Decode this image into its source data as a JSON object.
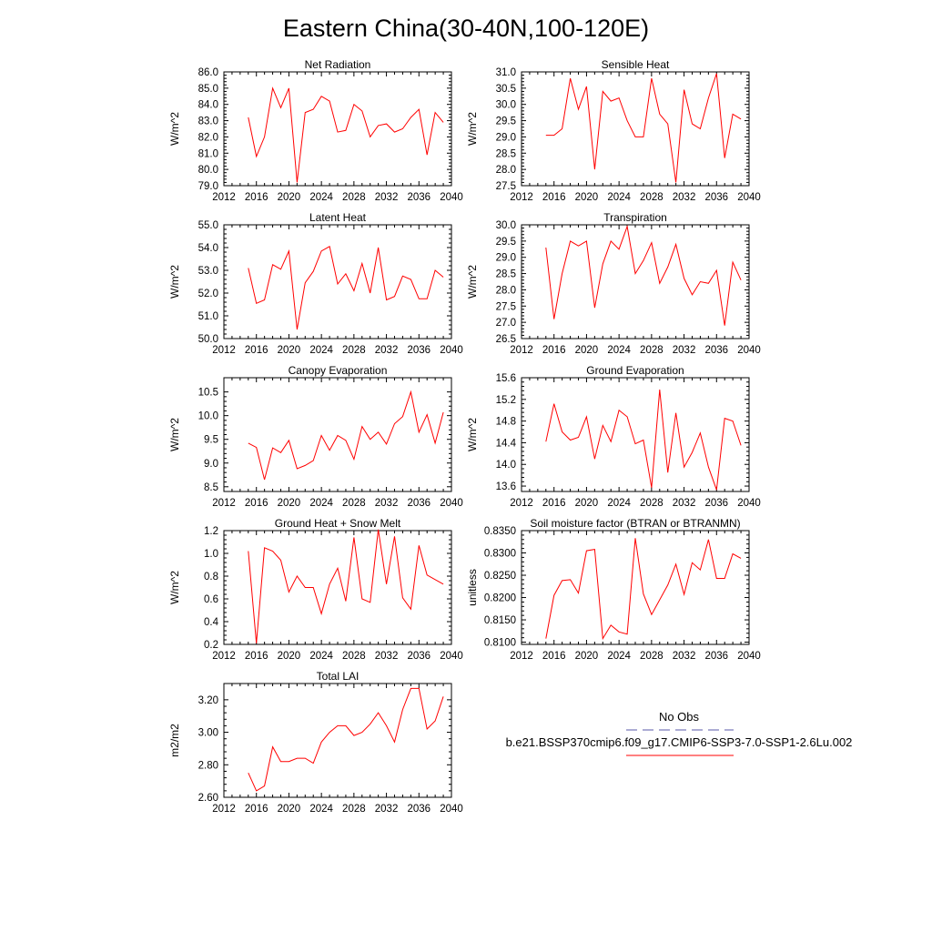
{
  "title": "Eastern China(30-40N,100-120E)",
  "legend": {
    "obs_label": "No Obs",
    "obs_color": "#5a5aa8",
    "model_label": "b.e21.BSSP370cmip6.f09_g17.CMIP6-SSP3-7.0-SSP1-2.6Lu.002",
    "model_color": "#ff0000"
  },
  "chart_data": [
    {
      "type": "line",
      "title": "Net Radiation",
      "ylabel": "W/m^2",
      "xlim": [
        2012,
        2040
      ],
      "xticks": [
        "2012",
        "2016",
        "2020",
        "2024",
        "2028",
        "2032",
        "2036",
        "2040"
      ],
      "ylim": [
        79.0,
        86.0
      ],
      "yticks": [
        "79.0",
        "80.0",
        "81.0",
        "82.0",
        "83.0",
        "84.0",
        "85.0",
        "86.0"
      ],
      "x": [
        2015,
        2016,
        2017,
        2018,
        2019,
        2020,
        2021,
        2022,
        2023,
        2024,
        2025,
        2026,
        2027,
        2028,
        2029,
        2030,
        2031,
        2032,
        2033,
        2034,
        2035,
        2036,
        2037,
        2038,
        2039
      ],
      "values": [
        83.2,
        80.8,
        82.0,
        85.0,
        83.8,
        85.0,
        79.2,
        83.5,
        83.7,
        84.5,
        84.2,
        82.3,
        82.4,
        84.0,
        83.6,
        82.0,
        82.7,
        82.8,
        82.3,
        82.5,
        83.2,
        83.7,
        80.9,
        83.5,
        82.9
      ],
      "color": "#ff0000"
    },
    {
      "type": "line",
      "title": "Sensible Heat",
      "ylabel": "W/m^2",
      "xlim": [
        2012,
        2040
      ],
      "xticks": [
        "2012",
        "2016",
        "2020",
        "2024",
        "2028",
        "2032",
        "2036",
        "2040"
      ],
      "ylim": [
        27.5,
        31.0
      ],
      "yticks": [
        "27.5",
        "28.0",
        "28.5",
        "29.0",
        "29.5",
        "30.0",
        "30.5",
        "31.0"
      ],
      "x": [
        2015,
        2016,
        2017,
        2018,
        2019,
        2020,
        2021,
        2022,
        2023,
        2024,
        2025,
        2026,
        2027,
        2028,
        2029,
        2030,
        2031,
        2032,
        2033,
        2034,
        2035,
        2036,
        2037,
        2038,
        2039
      ],
      "values": [
        29.05,
        29.05,
        29.25,
        30.8,
        29.85,
        30.55,
        28.0,
        30.4,
        30.1,
        30.2,
        29.5,
        29.0,
        29.0,
        30.8,
        29.7,
        29.4,
        27.6,
        30.45,
        29.4,
        29.25,
        30.2,
        30.95,
        28.35,
        29.7,
        29.55
      ],
      "color": "#ff0000"
    },
    {
      "type": "line",
      "title": "Latent Heat",
      "ylabel": "W/m^2",
      "xlim": [
        2012,
        2040
      ],
      "xticks": [
        "2012",
        "2016",
        "2020",
        "2024",
        "2028",
        "2032",
        "2036",
        "2040"
      ],
      "ylim": [
        50.0,
        55.0
      ],
      "yticks": [
        "50.0",
        "51.0",
        "52.0",
        "53.0",
        "54.0",
        "55.0"
      ],
      "x": [
        2015,
        2016,
        2017,
        2018,
        2019,
        2020,
        2021,
        2022,
        2023,
        2024,
        2025,
        2026,
        2027,
        2028,
        2029,
        2030,
        2031,
        2032,
        2033,
        2034,
        2035,
        2036,
        2037,
        2038,
        2039
      ],
      "values": [
        53.1,
        51.55,
        51.7,
        53.25,
        53.05,
        53.85,
        50.4,
        52.45,
        52.95,
        53.85,
        54.05,
        52.4,
        52.85,
        52.1,
        53.3,
        52.0,
        54.0,
        51.7,
        51.85,
        52.75,
        52.6,
        51.75,
        51.75,
        53.0,
        52.7
      ],
      "color": "#ff0000"
    },
    {
      "type": "line",
      "title": "Transpiration",
      "ylabel": "W/m^2",
      "xlim": [
        2012,
        2040
      ],
      "xticks": [
        "2012",
        "2016",
        "2020",
        "2024",
        "2028",
        "2032",
        "2036",
        "2040"
      ],
      "ylim": [
        26.5,
        30.0
      ],
      "yticks": [
        "26.5",
        "27.0",
        "27.5",
        "28.0",
        "28.5",
        "29.0",
        "29.5",
        "30.0"
      ],
      "x": [
        2015,
        2016,
        2017,
        2018,
        2019,
        2020,
        2021,
        2022,
        2023,
        2024,
        2025,
        2026,
        2027,
        2028,
        2029,
        2030,
        2031,
        2032,
        2033,
        2034,
        2035,
        2036,
        2037,
        2038,
        2039
      ],
      "values": [
        29.3,
        27.1,
        28.5,
        29.5,
        29.35,
        29.5,
        27.45,
        28.8,
        29.5,
        29.25,
        29.95,
        28.5,
        28.9,
        29.45,
        28.2,
        28.7,
        29.4,
        28.35,
        27.85,
        28.25,
        28.2,
        28.6,
        26.9,
        28.85,
        28.3
      ],
      "color": "#ff0000"
    },
    {
      "type": "line",
      "title": "Canopy Evaporation",
      "ylabel": "W/m^2",
      "xlim": [
        2012,
        2040
      ],
      "xticks": [
        "2012",
        "2016",
        "2020",
        "2024",
        "2028",
        "2032",
        "2036",
        "2040"
      ],
      "ylim": [
        8.4,
        10.8
      ],
      "yticks": [
        "8.5",
        "9.0",
        "9.5",
        "10.0",
        "10.5"
      ],
      "x": [
        2015,
        2016,
        2017,
        2018,
        2019,
        2020,
        2021,
        2022,
        2023,
        2024,
        2025,
        2026,
        2027,
        2028,
        2029,
        2030,
        2031,
        2032,
        2033,
        2034,
        2035,
        2036,
        2037,
        2038,
        2039
      ],
      "values": [
        9.42,
        9.33,
        8.65,
        9.32,
        9.22,
        9.48,
        8.88,
        8.95,
        9.05,
        9.58,
        9.27,
        9.58,
        9.48,
        9.08,
        9.77,
        9.5,
        9.65,
        9.4,
        9.83,
        9.98,
        10.5,
        9.65,
        10.02,
        9.42,
        10.07
      ],
      "color": "#ff0000"
    },
    {
      "type": "line",
      "title": "Ground Evaporation",
      "ylabel": "W/m^2",
      "xlim": [
        2012,
        2040
      ],
      "xticks": [
        "2012",
        "2016",
        "2020",
        "2024",
        "2028",
        "2032",
        "2036",
        "2040"
      ],
      "ylim": [
        13.5,
        15.6
      ],
      "yticks": [
        "13.6",
        "14.0",
        "14.4",
        "14.8",
        "15.2",
        "15.6"
      ],
      "x": [
        2015,
        2016,
        2017,
        2018,
        2019,
        2020,
        2021,
        2022,
        2023,
        2024,
        2025,
        2026,
        2027,
        2028,
        2029,
        2030,
        2031,
        2032,
        2033,
        2034,
        2035,
        2036,
        2037,
        2038,
        2039
      ],
      "values": [
        14.42,
        15.12,
        14.6,
        14.45,
        14.5,
        14.88,
        14.1,
        14.72,
        14.42,
        15.0,
        14.88,
        14.38,
        14.45,
        13.57,
        15.38,
        13.85,
        14.95,
        13.95,
        14.22,
        14.58,
        13.95,
        13.53,
        14.85,
        14.8,
        14.35
      ],
      "color": "#ff0000"
    },
    {
      "type": "line",
      "title": "Ground Heat + Snow Melt",
      "ylabel": "W/m^2",
      "xlim": [
        2012,
        2040
      ],
      "xticks": [
        "2012",
        "2016",
        "2020",
        "2024",
        "2028",
        "2032",
        "2036",
        "2040"
      ],
      "ylim": [
        0.2,
        1.2
      ],
      "yticks": [
        "0.2",
        "0.4",
        "0.6",
        "0.8",
        "1.0",
        "1.2"
      ],
      "x": [
        2015,
        2016,
        2017,
        2018,
        2019,
        2020,
        2021,
        2022,
        2023,
        2024,
        2025,
        2026,
        2027,
        2028,
        2029,
        2030,
        2031,
        2032,
        2033,
        2034,
        2035,
        2036,
        2037,
        2038,
        2039
      ],
      "values": [
        1.02,
        0.21,
        1.05,
        1.02,
        0.94,
        0.66,
        0.8,
        0.7,
        0.7,
        0.47,
        0.73,
        0.87,
        0.58,
        1.14,
        0.6,
        0.57,
        1.21,
        0.73,
        1.15,
        0.61,
        0.51,
        1.07,
        0.81,
        0.77,
        0.73
      ],
      "color": "#ff0000"
    },
    {
      "type": "line",
      "title": "Soil moisture factor (BTRAN or BTRANMN)",
      "ylabel": "unitless",
      "xlim": [
        2012,
        2040
      ],
      "xticks": [
        "2012",
        "2016",
        "2020",
        "2024",
        "2028",
        "2032",
        "2036",
        "2040"
      ],
      "ylim": [
        0.8095,
        0.835
      ],
      "yticks": [
        "0.8100",
        "0.8150",
        "0.8200",
        "0.8250",
        "0.8300",
        "0.8350"
      ],
      "x": [
        2015,
        2016,
        2017,
        2018,
        2019,
        2020,
        2021,
        2022,
        2023,
        2024,
        2025,
        2026,
        2027,
        2028,
        2029,
        2030,
        2031,
        2032,
        2033,
        2034,
        2035,
        2036,
        2037,
        2038,
        2039
      ],
      "values": [
        0.8108,
        0.8205,
        0.8238,
        0.824,
        0.821,
        0.8305,
        0.8308,
        0.8108,
        0.8138,
        0.8123,
        0.8118,
        0.8333,
        0.8208,
        0.8162,
        0.8195,
        0.8228,
        0.8275,
        0.8207,
        0.8278,
        0.8262,
        0.833,
        0.8243,
        0.8243,
        0.8298,
        0.8288
      ],
      "color": "#ff0000"
    },
    {
      "type": "line",
      "title": "Total LAI",
      "ylabel": "m2/m2",
      "xlim": [
        2012,
        2040
      ],
      "xticks": [
        "2012",
        "2016",
        "2020",
        "2024",
        "2028",
        "2032",
        "2036",
        "2040"
      ],
      "ylim": [
        2.6,
        3.3
      ],
      "yticks": [
        "2.60",
        "2.80",
        "3.00",
        "3.20"
      ],
      "x": [
        2015,
        2016,
        2017,
        2018,
        2019,
        2020,
        2021,
        2022,
        2023,
        2024,
        2025,
        2026,
        2027,
        2028,
        2029,
        2030,
        2031,
        2032,
        2033,
        2034,
        2035,
        2036,
        2037,
        2038,
        2039
      ],
      "values": [
        2.75,
        2.64,
        2.67,
        2.91,
        2.82,
        2.82,
        2.84,
        2.84,
        2.81,
        2.94,
        3.0,
        3.04,
        3.04,
        2.98,
        3.0,
        3.05,
        3.12,
        3.04,
        2.94,
        3.14,
        3.27,
        3.27,
        3.02,
        3.07,
        3.22
      ],
      "color": "#ff0000"
    }
  ]
}
